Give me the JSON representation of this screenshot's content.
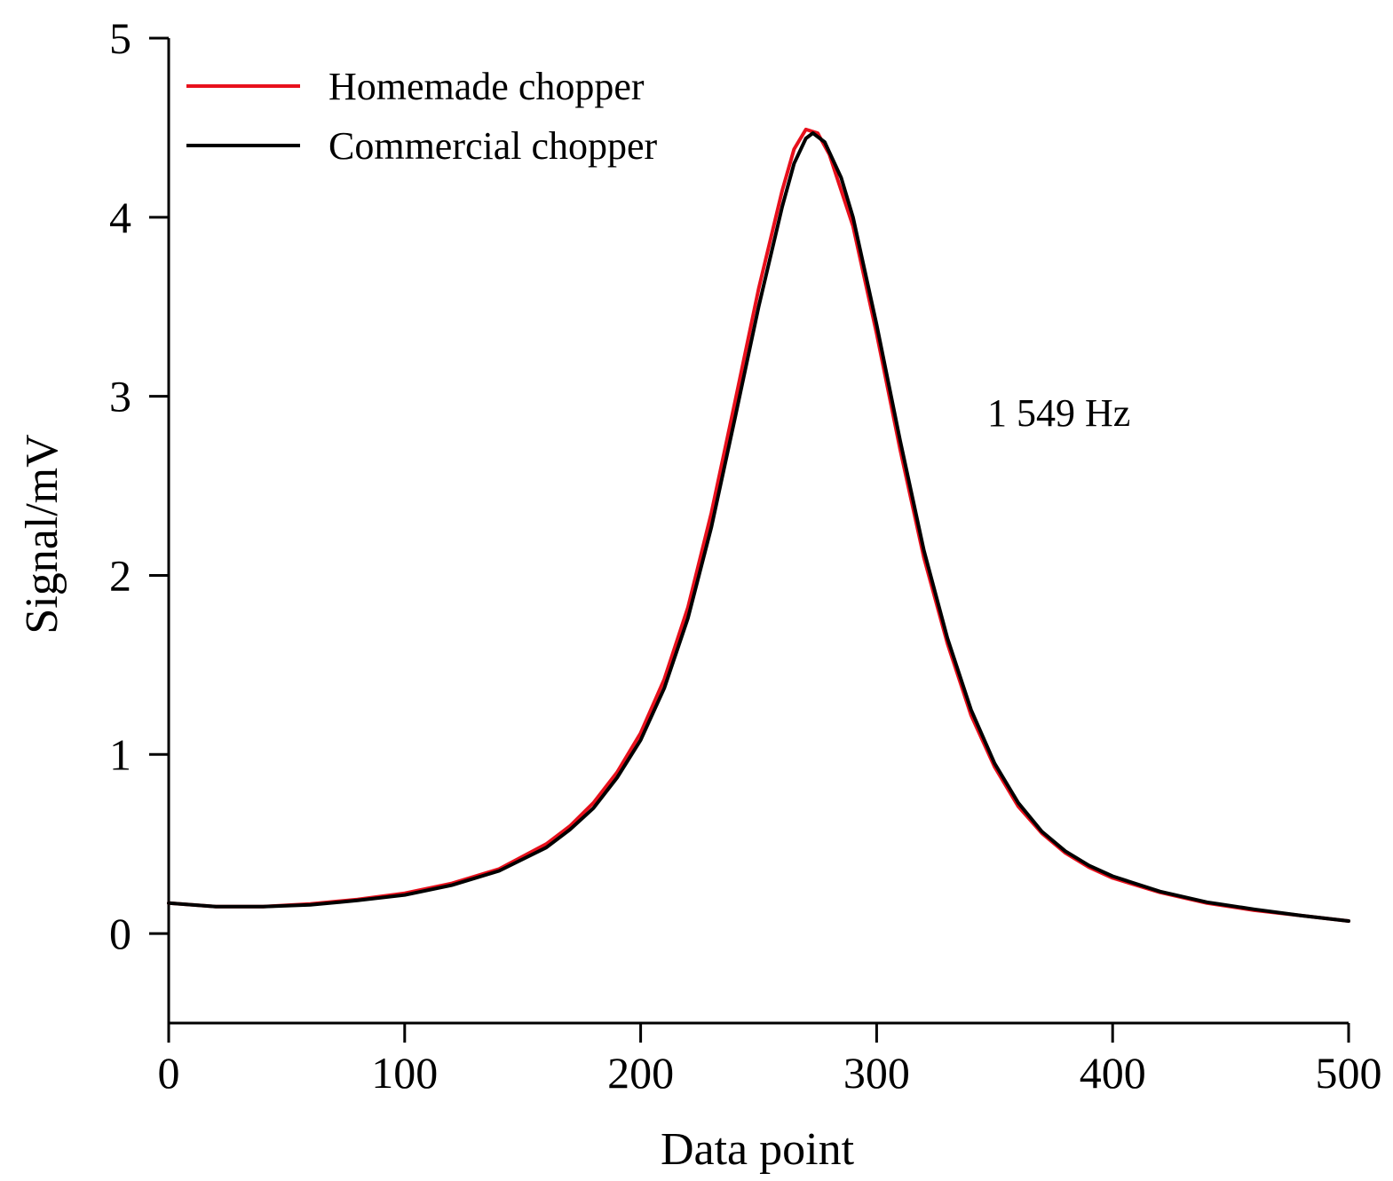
{
  "chart_data": {
    "type": "line",
    "xlabel": "Data point",
    "ylabel": "Signal/mV",
    "xlim": [
      0,
      500
    ],
    "ylim": [
      -0.5,
      5
    ],
    "xticks": [
      0,
      100,
      200,
      300,
      400,
      500
    ],
    "yticks": [
      0,
      1,
      2,
      3,
      4,
      5
    ],
    "grid": false,
    "legend_position": "top-left",
    "annotation": "1 549 Hz",
    "series": [
      {
        "name": "Homemade chopper",
        "color": "#e8101c",
        "points": [
          [
            0,
            0.17
          ],
          [
            20,
            0.15
          ],
          [
            40,
            0.15
          ],
          [
            60,
            0.165
          ],
          [
            80,
            0.19
          ],
          [
            100,
            0.225
          ],
          [
            120,
            0.28
          ],
          [
            140,
            0.36
          ],
          [
            160,
            0.5
          ],
          [
            170,
            0.6
          ],
          [
            180,
            0.73
          ],
          [
            190,
            0.9
          ],
          [
            200,
            1.12
          ],
          [
            210,
            1.42
          ],
          [
            220,
            1.82
          ],
          [
            230,
            2.35
          ],
          [
            240,
            2.97
          ],
          [
            250,
            3.6
          ],
          [
            260,
            4.15
          ],
          [
            265,
            4.38
          ],
          [
            270,
            4.49
          ],
          [
            275,
            4.47
          ],
          [
            280,
            4.35
          ],
          [
            290,
            3.95
          ],
          [
            300,
            3.35
          ],
          [
            310,
            2.7
          ],
          [
            320,
            2.1
          ],
          [
            330,
            1.62
          ],
          [
            340,
            1.22
          ],
          [
            350,
            0.93
          ],
          [
            360,
            0.71
          ],
          [
            370,
            0.56
          ],
          [
            380,
            0.45
          ],
          [
            390,
            0.37
          ],
          [
            400,
            0.31
          ],
          [
            420,
            0.23
          ],
          [
            440,
            0.17
          ],
          [
            460,
            0.13
          ],
          [
            480,
            0.1
          ],
          [
            500,
            0.07
          ]
        ]
      },
      {
        "name": "Commercial chopper",
        "color": "#000000",
        "points": [
          [
            0,
            0.17
          ],
          [
            20,
            0.15
          ],
          [
            40,
            0.15
          ],
          [
            60,
            0.16
          ],
          [
            80,
            0.185
          ],
          [
            100,
            0.215
          ],
          [
            120,
            0.27
          ],
          [
            140,
            0.35
          ],
          [
            160,
            0.48
          ],
          [
            170,
            0.58
          ],
          [
            180,
            0.7
          ],
          [
            190,
            0.87
          ],
          [
            200,
            1.08
          ],
          [
            210,
            1.37
          ],
          [
            220,
            1.76
          ],
          [
            230,
            2.27
          ],
          [
            240,
            2.88
          ],
          [
            250,
            3.5
          ],
          [
            260,
            4.06
          ],
          [
            265,
            4.3
          ],
          [
            270,
            4.44
          ],
          [
            273,
            4.47
          ],
          [
            278,
            4.42
          ],
          [
            285,
            4.22
          ],
          [
            290,
            4.0
          ],
          [
            300,
            3.4
          ],
          [
            310,
            2.75
          ],
          [
            320,
            2.14
          ],
          [
            330,
            1.65
          ],
          [
            340,
            1.25
          ],
          [
            350,
            0.95
          ],
          [
            360,
            0.73
          ],
          [
            370,
            0.57
          ],
          [
            380,
            0.46
          ],
          [
            390,
            0.38
          ],
          [
            400,
            0.32
          ],
          [
            420,
            0.235
          ],
          [
            440,
            0.175
          ],
          [
            460,
            0.135
          ],
          [
            480,
            0.1
          ],
          [
            500,
            0.07
          ]
        ]
      }
    ]
  }
}
